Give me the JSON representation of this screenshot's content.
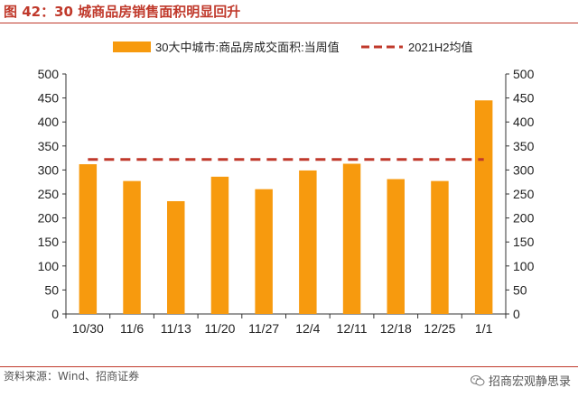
{
  "figure": {
    "title": "图 42：30 城商品房销售面积明显回升",
    "source": "资料来源：Wind、招商证券",
    "watermark": "招商宏观静思录"
  },
  "chart_data": {
    "type": "bar",
    "title": "",
    "xlabel": "",
    "ylabel": "",
    "categories": [
      "10/30",
      "11/6",
      "11/13",
      "11/20",
      "11/27",
      "12/4",
      "12/11",
      "12/18",
      "12/25",
      "1/1"
    ],
    "series": [
      {
        "name": "30大中城市:商品房成交面积:当周值",
        "type": "bar",
        "values": [
          312,
          277,
          235,
          286,
          260,
          299,
          313,
          281,
          277,
          445
        ],
        "color": "#f79a0e"
      },
      {
        "name": "2021H2均值",
        "type": "line",
        "style": "dashed",
        "values": [
          322,
          322,
          322,
          322,
          322,
          322,
          322,
          322,
          322,
          322
        ],
        "color": "#c0392b"
      }
    ],
    "ylim": [
      0,
      500
    ],
    "yticks": [
      0,
      50,
      100,
      150,
      200,
      250,
      300,
      350,
      400,
      450,
      500
    ],
    "y2lim": [
      0,
      500
    ],
    "grid": false,
    "legend_position": "top"
  }
}
